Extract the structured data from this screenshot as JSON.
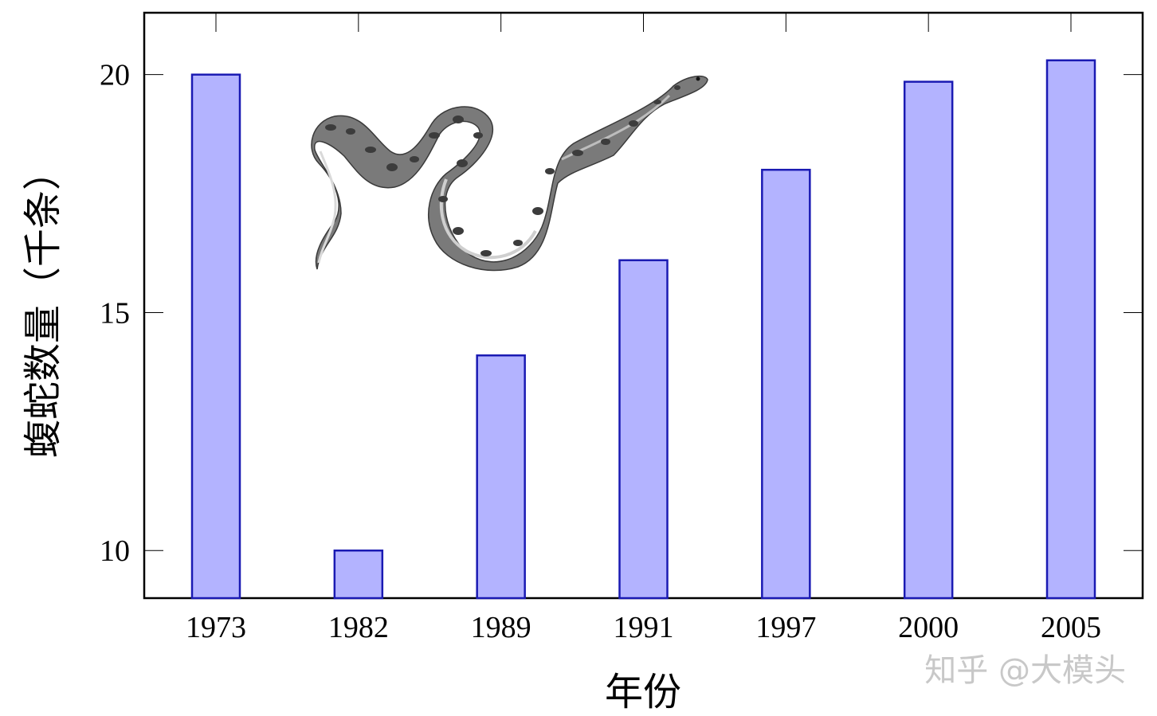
{
  "chart_data": {
    "type": "bar",
    "categories": [
      "1973",
      "1982",
      "1989",
      "1991",
      "1997",
      "2000",
      "2005"
    ],
    "values": [
      20.0,
      10.0,
      14.1,
      16.1,
      18.0,
      19.85,
      20.3
    ],
    "title": "",
    "xlabel": "年份",
    "ylabel": "蝮蛇数量（千条）",
    "ylim": [
      9,
      21.3
    ],
    "yticks": [
      "10",
      "15",
      "20"
    ],
    "grid": false,
    "legend": "none",
    "bar_fill": "#b3b3ff",
    "bar_stroke": "#1a1ab3",
    "decoration": "snake-illustration"
  },
  "watermark": "知乎 @大模头"
}
